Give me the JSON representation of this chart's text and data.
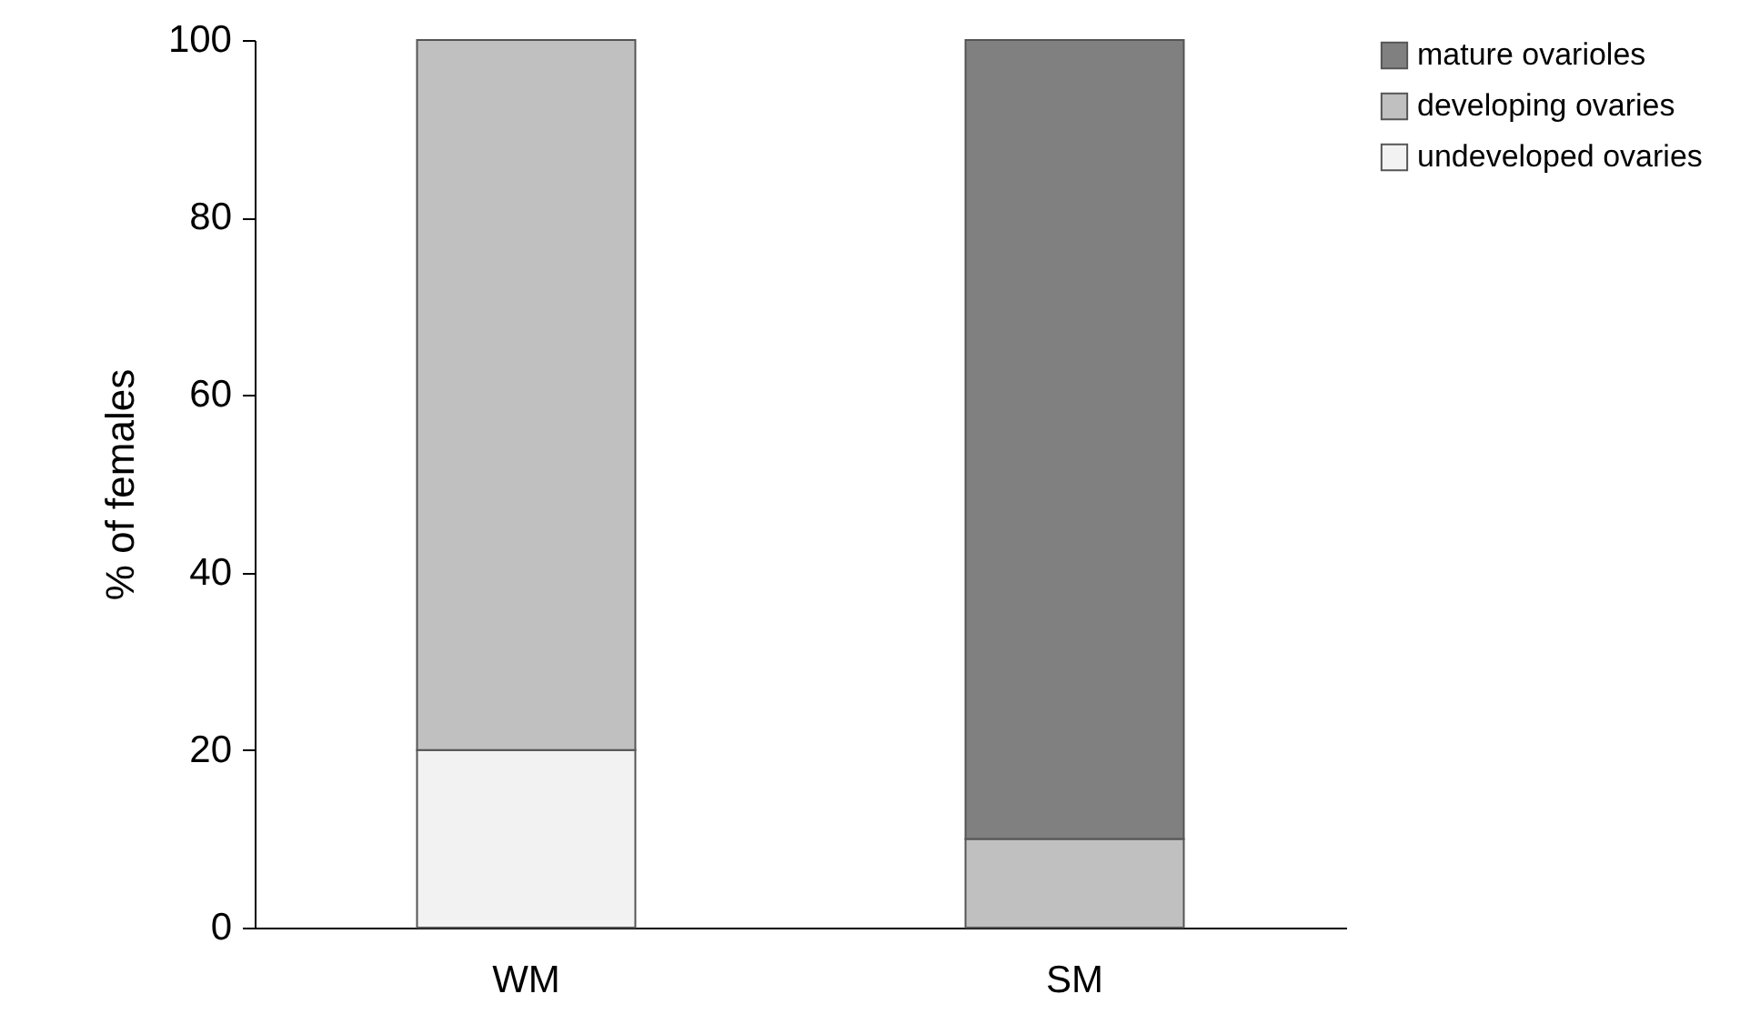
{
  "chart_data": {
    "type": "bar",
    "stacked": true,
    "ylabel": "% of females",
    "categories": [
      "WM",
      "SM"
    ],
    "series": [
      {
        "name": "undeveloped ovaries",
        "color": "#f2f2f2",
        "values": [
          20,
          0
        ]
      },
      {
        "name": "developing ovaries",
        "color": "#c0c0c0",
        "values": [
          80,
          10
        ]
      },
      {
        "name": "mature ovarioles",
        "color": "#808080",
        "values": [
          0,
          90
        ]
      }
    ],
    "ylim": [
      0,
      100
    ],
    "yticks": [
      0,
      20,
      40,
      60,
      80,
      100
    ],
    "grid": false,
    "legend": "top right"
  }
}
